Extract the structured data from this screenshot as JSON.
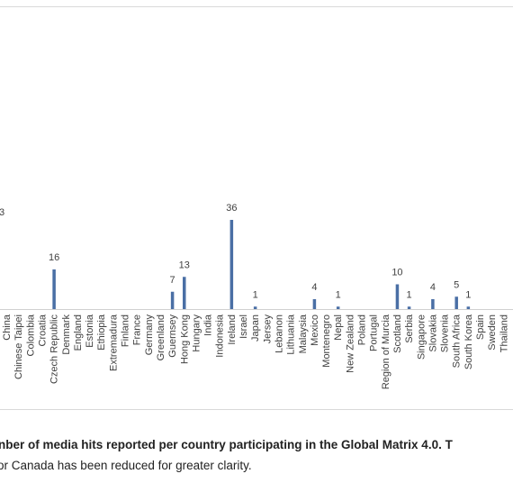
{
  "chart_data": {
    "type": "bar",
    "categories": [
      "China",
      "Chinese Taipei",
      "Colombia",
      "Croatia",
      "Czech Republic",
      "Denmark",
      "England",
      "Estonia",
      "Ethiopia",
      "Extremadura",
      "Finland",
      "France",
      "Germany",
      "Greenland",
      "Guernsey",
      "Hong Kong",
      "Hungary",
      "India",
      "Indonesia",
      "Ireland",
      "Israel",
      "Japan",
      "Jersey",
      "Lebanon",
      "Lithuania",
      "Malaysia",
      "Mexico",
      "Montenegro",
      "Nepal",
      "New Zealand",
      "Poland",
      "Portugal",
      "Region of Murcia",
      "Scotland",
      "Serbia",
      "Singapore",
      "Slovakia",
      "Slovenia",
      "South Africa",
      "South Korea",
      "Spain",
      "Sweden",
      "Thailand"
    ],
    "values": [
      0,
      0,
      0,
      0,
      16,
      0,
      0,
      0,
      0,
      0,
      0,
      0,
      0,
      0,
      7,
      13,
      0,
      0,
      0,
      36,
      0,
      1,
      0,
      0,
      0,
      0,
      4,
      0,
      1,
      0,
      0,
      0,
      0,
      10,
      1,
      0,
      4,
      0,
      5,
      1,
      0,
      0,
      0
    ],
    "data_labels": [
      "",
      "",
      "",
      "",
      "16",
      "",
      "",
      "",
      "",
      "",
      "",
      "",
      "",
      "",
      "7",
      "13",
      "",
      "",
      "",
      "36",
      "",
      "1",
      "",
      "",
      "",
      "",
      "4",
      "",
      "1",
      "",
      "",
      "",
      "",
      "10",
      "1",
      "",
      "4",
      "",
      "5",
      "1",
      "",
      "",
      ""
    ],
    "ylim": [
      0,
      43
    ],
    "partial_label_left": "3",
    "bar_color": "#4a6fa5",
    "label_color": "#404040",
    "axis_color": "#d0d0d0",
    "grid": false,
    "legend": "none"
  },
  "caption": {
    "line1": "nber of media hits reported per country participating in the Global Matrix 4.0. T",
    "line2": "or Canada has been reduced for greater clarity."
  }
}
